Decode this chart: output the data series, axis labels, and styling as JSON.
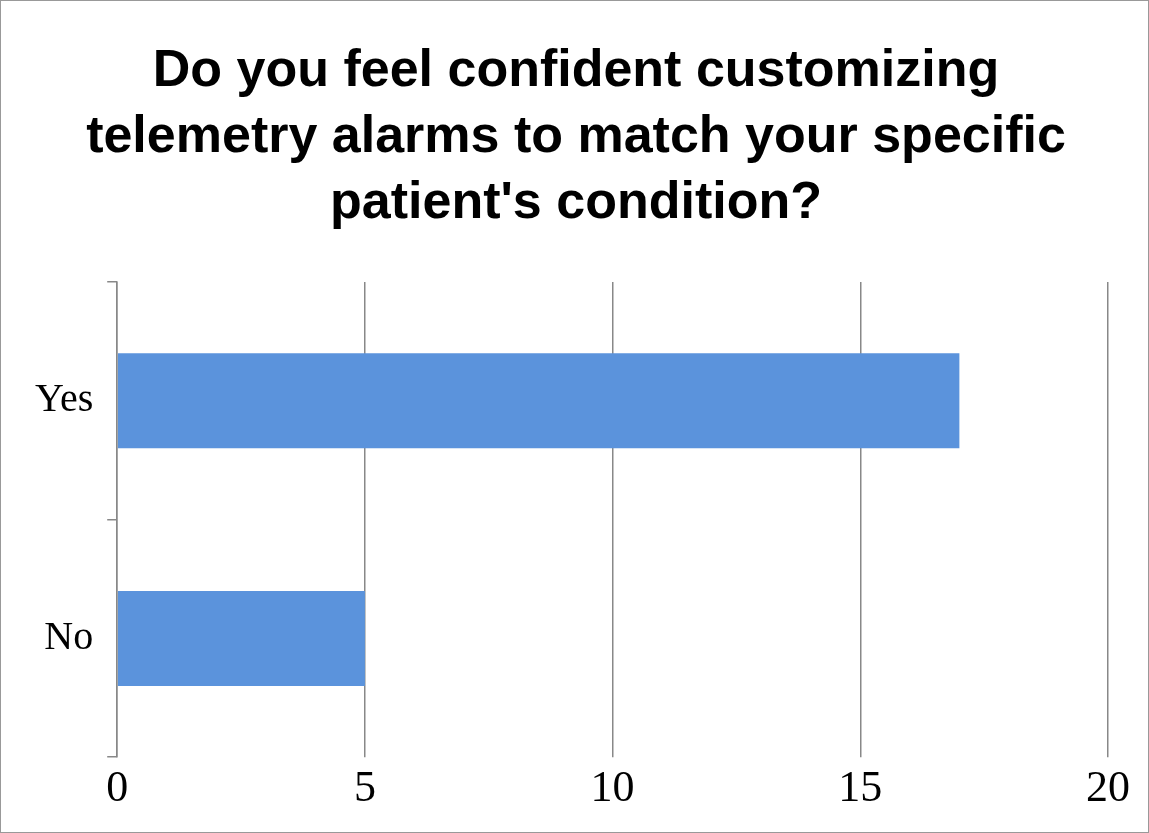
{
  "chart_data": {
    "type": "bar",
    "orientation": "horizontal",
    "title": "Do you feel confident customizing telemetry alarms to match your specific patient's condition?",
    "categories": [
      "Yes",
      "No"
    ],
    "values": [
      17,
      5
    ],
    "color": "#5b93dc",
    "xlim": [
      0,
      20
    ],
    "xticks": [
      0,
      5,
      10,
      15,
      20
    ],
    "grid": "x",
    "legend": false
  }
}
